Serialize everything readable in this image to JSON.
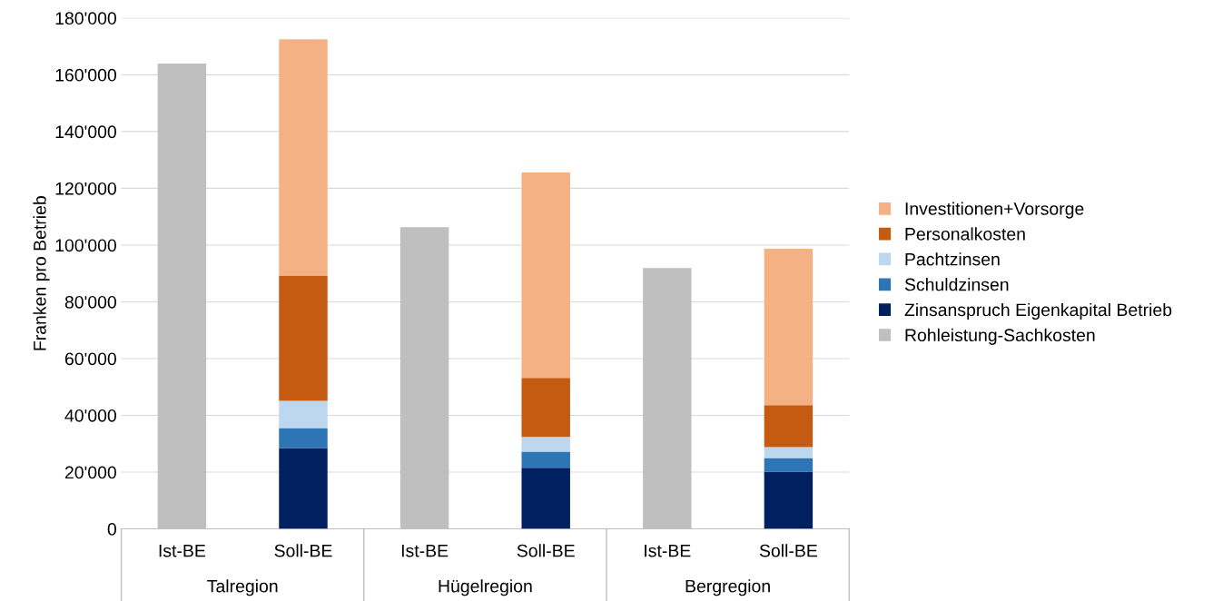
{
  "chart_data": {
    "type": "bar",
    "stacked": true,
    "ylabel": "Franken pro Betrieb",
    "categories": [
      "Ist-BE",
      "Soll-BE",
      "Ist-BE",
      "Soll-BE",
      "Ist-BE",
      "Soll-BE"
    ],
    "series": [
      {
        "name": "Rohleistung-Sachkosten",
        "color": "#bfbfbf",
        "values": [
          164000,
          null,
          106300,
          null,
          91900,
          null
        ]
      },
      {
        "name": "Zinsanspruch Eigenkapital Betrieb",
        "color": "#002060",
        "values": [
          null,
          28500,
          null,
          21500,
          null,
          20200
        ]
      },
      {
        "name": "Schuldzinsen",
        "color": "#2e75b6",
        "values": [
          null,
          7000,
          null,
          5700,
          null,
          4800
        ]
      },
      {
        "name": "Pachtzinsen",
        "color": "#bdd7ee",
        "values": [
          null,
          9600,
          null,
          5200,
          null,
          3800
        ]
      },
      {
        "name": "Personalkosten",
        "color": "#c55a11",
        "values": [
          null,
          44200,
          null,
          20800,
          null,
          14800
        ]
      },
      {
        "name": "Investitionen+Vorsorge",
        "color": "#f4b183",
        "values": [
          null,
          83200,
          null,
          72400,
          null,
          55100
        ]
      }
    ],
    "annotations": [
      "Talregion",
      "Hügelregion",
      "Bergregion"
    ],
    "ylim": [
      0,
      180000
    ],
    "yticks": [
      0,
      {
        "value": 20000,
        "label": "20'000"
      },
      {
        "value": 40000,
        "label": "40'000"
      },
      {
        "value": 60000,
        "label": "60'000"
      },
      {
        "value": 80000,
        "label": "80'000"
      },
      {
        "value": 100000,
        "label": "100'000"
      },
      {
        "value": 120000,
        "label": "120'000"
      },
      {
        "value": 140000,
        "label": "140'000"
      },
      {
        "value": 160000,
        "label": "160'000"
      },
      {
        "value": 180000,
        "label": "180'000"
      }
    ],
    "grid": "y",
    "legend": "right"
  }
}
